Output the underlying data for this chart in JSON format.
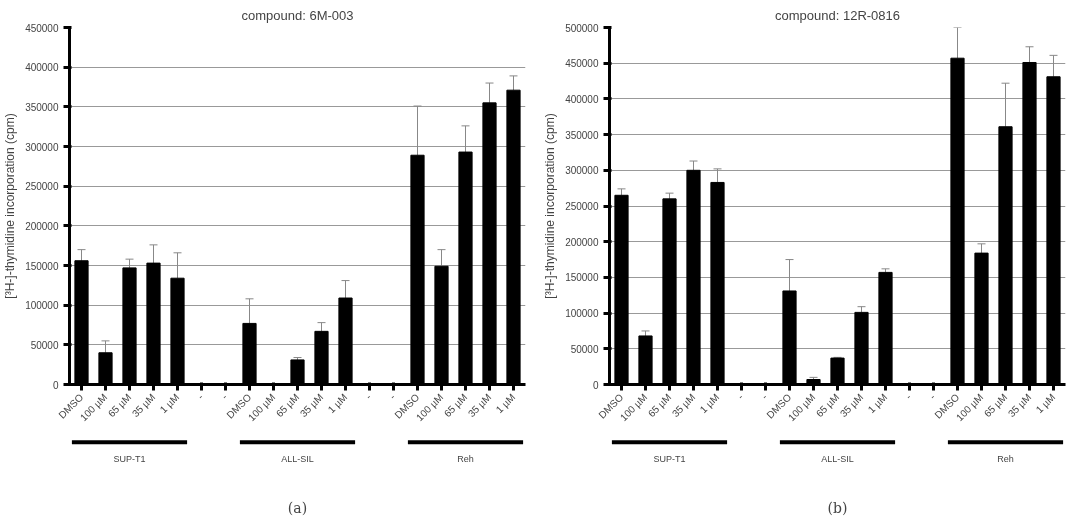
{
  "chart_data": [
    {
      "type": "bar",
      "title": "compound: 6M-003",
      "ylabel": "[³H-]-thymidine incorporation (cpm)",
      "categories": [
        "DMSO",
        "100 µM",
        "65 µM",
        "35 µM",
        "1 µM",
        "-",
        "-",
        "DMSO",
        "100 µM",
        "65 µM",
        "35 µM",
        "1 µM",
        "-",
        "-",
        "DMSO",
        "100 µM",
        "65 µM",
        "35 µM",
        "1 µM"
      ],
      "values": [
        156000,
        40000,
        147000,
        153000,
        134000,
        null,
        null,
        77000,
        1000,
        31000,
        67000,
        109000,
        null,
        null,
        289000,
        149000,
        293000,
        355000,
        371000
      ],
      "errors": [
        [
          156000,
          170000
        ],
        [
          40000,
          55000
        ],
        [
          147000,
          158000
        ],
        [
          153000,
          176000
        ],
        [
          134000,
          166000
        ],
        null,
        null,
        [
          77000,
          108000
        ],
        null,
        [
          31000,
          34000
        ],
        [
          67000,
          78000
        ],
        [
          109000,
          131000
        ],
        null,
        null,
        [
          289000,
          351000
        ],
        [
          149000,
          170000
        ],
        [
          293000,
          326000
        ],
        [
          355000,
          380000
        ],
        [
          371000,
          389000
        ]
      ],
      "color": "#000000",
      "ylim": [
        0,
        450000
      ],
      "yticks": [
        0,
        50000,
        100000,
        150000,
        200000,
        250000,
        300000,
        350000,
        400000,
        450000
      ],
      "grid": "y",
      "annotations": [
        "SUP-T1",
        "ALL-SIL",
        "Reh",
        "(a)"
      ]
    },
    {
      "type": "bar",
      "title": "compound: 12R-0816",
      "ylabel": "[³H-]-thymidine incorporation (cpm)",
      "categories": [
        "DMSO",
        "100 µM",
        "65 µM",
        "35 µM",
        "1 µM",
        "-",
        "-",
        "DMSO",
        "100 µM",
        "65 µM",
        "35 µM",
        "1 µM",
        "-",
        "-",
        "DMSO",
        "100 µM",
        "65 µM",
        "35 µM",
        "1 µM"
      ],
      "values": [
        265000,
        68000,
        260000,
        300000,
        283000,
        null,
        null,
        131000,
        7000,
        37000,
        101000,
        157000,
        null,
        null,
        457000,
        184000,
        361000,
        451000,
        431000
      ],
      "errors": [
        [
          265000,
          274000
        ],
        [
          68000,
          75000
        ],
        [
          260000,
          268000
        ],
        [
          300000,
          313000
        ],
        [
          283000,
          302000
        ],
        null,
        null,
        [
          131000,
          175000
        ],
        [
          7000,
          10000
        ],
        [
          37000,
          38000
        ],
        [
          101000,
          109000
        ],
        [
          157000,
          162000
        ],
        null,
        null,
        [
          457000,
          500000
        ],
        [
          184000,
          197000
        ],
        [
          361000,
          422000
        ],
        [
          451000,
          473000
        ],
        [
          431000,
          461000
        ]
      ],
      "color": "#000000",
      "ylim": [
        0,
        500000
      ],
      "yticks": [
        0,
        50000,
        100000,
        150000,
        200000,
        250000,
        300000,
        350000,
        400000,
        450000,
        500000
      ],
      "grid": "y",
      "annotations": [
        "SUP-T1",
        "ALL-SIL",
        "Reh",
        "(b)"
      ]
    }
  ]
}
